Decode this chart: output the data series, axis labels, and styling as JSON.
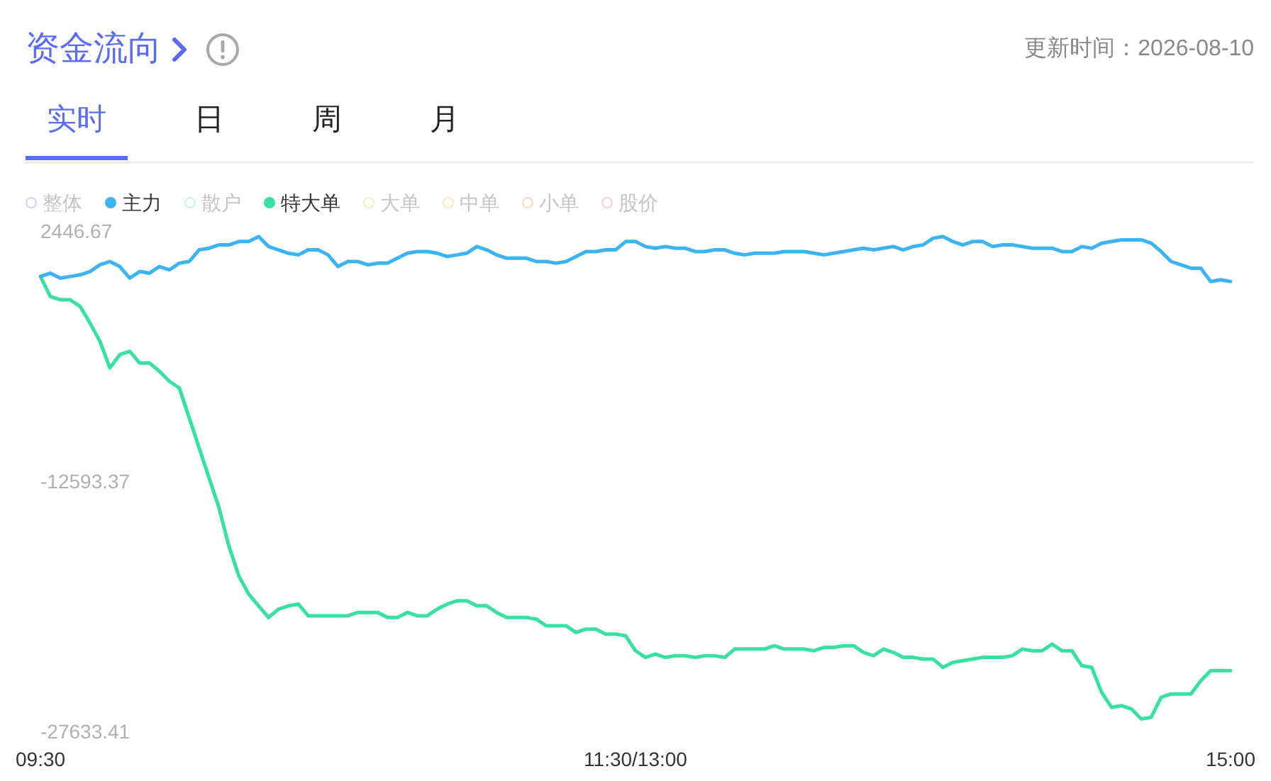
{
  "chart_data": {
    "type": "line",
    "title": "资金流向",
    "subtitle": "更新时间：2026-08-10",
    "annotations": [
      "实时",
      "日",
      "周",
      "月"
    ],
    "categories": [
      "09:30",
      null,
      null,
      null,
      null,
      null,
      null,
      null,
      null,
      null,
      null,
      null,
      null,
      null,
      null,
      null,
      null,
      null,
      null,
      null,
      null,
      null,
      null,
      null,
      null,
      null,
      null,
      null,
      null,
      null,
      null,
      null,
      null,
      null,
      null,
      null,
      null,
      null,
      null,
      null,
      null,
      null,
      null,
      null,
      null,
      null,
      null,
      null,
      null,
      null,
      null,
      null,
      null,
      null,
      null,
      null,
      null,
      null,
      null,
      null,
      "11:30/13:00",
      null,
      null,
      null,
      null,
      null,
      null,
      null,
      null,
      null,
      null,
      null,
      null,
      null,
      null,
      null,
      null,
      null,
      null,
      null,
      null,
      null,
      null,
      null,
      null,
      null,
      null,
      null,
      null,
      null,
      null,
      null,
      null,
      null,
      null,
      null,
      null,
      null,
      null,
      null,
      null,
      null,
      null,
      null,
      null,
      null,
      null,
      null,
      null,
      null,
      null,
      null,
      null,
      null,
      null,
      null,
      null,
      null,
      null,
      null,
      "15:00"
    ],
    "ylim": [
      -27633.41,
      2446.67
    ],
    "yticks": [
      -27633.41,
      -12593.37,
      2446.67
    ],
    "legend": "top left",
    "marker": "none",
    "line_style": "solid",
    "series": [
      {
        "name": "整体",
        "color": "#cfd3f7",
        "values": [
          null,
          null,
          null,
          null,
          null,
          null,
          null,
          null,
          null,
          null,
          null,
          null,
          null,
          null,
          null,
          null,
          null,
          null,
          null,
          null,
          null,
          null,
          null,
          null,
          null,
          null,
          null,
          null,
          null,
          null,
          null,
          null,
          null,
          null,
          null,
          null,
          null,
          null,
          null,
          null,
          null,
          null,
          null,
          null,
          null,
          null,
          null,
          null,
          null,
          null,
          null,
          null,
          null,
          null,
          null,
          null,
          null,
          null,
          null,
          null,
          null,
          null,
          null,
          null,
          null,
          null,
          null,
          null,
          null,
          null,
          null,
          null,
          null,
          null,
          null,
          null,
          null,
          null,
          null,
          null,
          null,
          null,
          null,
          null,
          null,
          null,
          null,
          null,
          null,
          null,
          null,
          null,
          null,
          null,
          null,
          null,
          null,
          null,
          null,
          null,
          null,
          null,
          null,
          null,
          null,
          null,
          null,
          null,
          null,
          null,
          null,
          null,
          null,
          null,
          null,
          null,
          null,
          null,
          null,
          null,
          null
        ]
      },
      {
        "name": "主力",
        "color": "#3db3f1",
        "values": [
          -200,
          0,
          -300,
          -200,
          -100,
          100,
          500,
          700,
          400,
          -300,
          100,
          0,
          400,
          200,
          600,
          700,
          1400,
          1500,
          1700,
          1700,
          1900,
          1900,
          2200,
          1600,
          1400,
          1200,
          1100,
          1400,
          1400,
          1100,
          400,
          700,
          700,
          500,
          600,
          600,
          900,
          1200,
          1300,
          1300,
          1200,
          1000,
          1100,
          1200,
          1600,
          1400,
          1100,
          900,
          900,
          900,
          700,
          700,
          600,
          700,
          1000,
          1300,
          1300,
          1400,
          1400,
          1900,
          1900,
          1600,
          1500,
          1600,
          1500,
          1500,
          1300,
          1300,
          1400,
          1400,
          1200,
          1100,
          1200,
          1200,
          1200,
          1300,
          1300,
          1300,
          1200,
          1100,
          1200,
          1300,
          1400,
          1500,
          1400,
          1500,
          1600,
          1400,
          1600,
          1700,
          2100,
          2200,
          1900,
          1700,
          1900,
          1900,
          1600,
          1700,
          1700,
          1600,
          1500,
          1500,
          1500,
          1300,
          1300,
          1600,
          1500,
          1800,
          1900,
          2000,
          2000,
          2000,
          1800,
          1300,
          700,
          500,
          300,
          300,
          -500,
          -400,
          -500
        ]
      },
      {
        "name": "散户",
        "color": "#c9f1ee",
        "values": [
          null,
          null,
          null,
          null,
          null,
          null,
          null,
          null,
          null,
          null,
          null,
          null,
          null,
          null,
          null,
          null,
          null,
          null,
          null,
          null,
          null,
          null,
          null,
          null,
          null,
          null,
          null,
          null,
          null,
          null,
          null,
          null,
          null,
          null,
          null,
          null,
          null,
          null,
          null,
          null,
          null,
          null,
          null,
          null,
          null,
          null,
          null,
          null,
          null,
          null,
          null,
          null,
          null,
          null,
          null,
          null,
          null,
          null,
          null,
          null,
          null,
          null,
          null,
          null,
          null,
          null,
          null,
          null,
          null,
          null,
          null,
          null,
          null,
          null,
          null,
          null,
          null,
          null,
          null,
          null,
          null,
          null,
          null,
          null,
          null,
          null,
          null,
          null,
          null,
          null,
          null,
          null,
          null,
          null,
          null,
          null,
          null,
          null,
          null,
          null,
          null,
          null,
          null,
          null,
          null,
          null,
          null,
          null,
          null,
          null,
          null,
          null,
          null,
          null,
          null,
          null,
          null,
          null,
          null,
          null,
          null
        ]
      },
      {
        "name": "特大单",
        "color": "#38e0a1",
        "values": [
          -200,
          -1400,
          -1600,
          -1600,
          -2000,
          -3000,
          -4100,
          -5700,
          -4900,
          -4700,
          -5400,
          -5400,
          -5900,
          -6500,
          -6900,
          -8700,
          -10500,
          -12300,
          -14100,
          -16400,
          -18200,
          -19300,
          -20000,
          -20700,
          -20200,
          -20000,
          -19900,
          -20600,
          -20600,
          -20600,
          -20600,
          -20600,
          -20400,
          -20400,
          -20400,
          -20700,
          -20700,
          -20400,
          -20600,
          -20600,
          -20200,
          -19900,
          -19700,
          -19700,
          -20000,
          -20000,
          -20400,
          -20700,
          -20700,
          -20700,
          -20800,
          -21200,
          -21200,
          -21200,
          -21600,
          -21400,
          -21400,
          -21700,
          -21700,
          -21800,
          -22700,
          -23100,
          -22900,
          -23100,
          -23000,
          -23000,
          -23100,
          -23000,
          -23000,
          -23100,
          -22600,
          -22600,
          -22600,
          -22600,
          -22400,
          -22600,
          -22600,
          -22600,
          -22700,
          -22500,
          -22500,
          -22400,
          -22400,
          -22800,
          -23000,
          -22600,
          -22800,
          -23100,
          -23100,
          -23200,
          -23200,
          -23700,
          -23400,
          -23300,
          -23200,
          -23100,
          -23100,
          -23100,
          -23000,
          -22600,
          -22700,
          -22700,
          -22300,
          -22700,
          -22700,
          -23600,
          -23700,
          -25200,
          -26100,
          -26000,
          -26200,
          -26800,
          -26700,
          -25500,
          -25300,
          -25300,
          -25300,
          -24500,
          -23900,
          -23900,
          -23900
        ]
      },
      {
        "name": "大单",
        "color": "#e5f3c6",
        "values": [
          null,
          null,
          null,
          null,
          null,
          null,
          null,
          null,
          null,
          null,
          null,
          null,
          null,
          null,
          null,
          null,
          null,
          null,
          null,
          null,
          null,
          null,
          null,
          null,
          null,
          null,
          null,
          null,
          null,
          null,
          null,
          null,
          null,
          null,
          null,
          null,
          null,
          null,
          null,
          null,
          null,
          null,
          null,
          null,
          null,
          null,
          null,
          null,
          null,
          null,
          null,
          null,
          null,
          null,
          null,
          null,
          null,
          null,
          null,
          null,
          null,
          null,
          null,
          null,
          null,
          null,
          null,
          null,
          null,
          null,
          null,
          null,
          null,
          null,
          null,
          null,
          null,
          null,
          null,
          null,
          null,
          null,
          null,
          null,
          null,
          null,
          null,
          null,
          null,
          null,
          null,
          null,
          null,
          null,
          null,
          null,
          null,
          null,
          null,
          null,
          null,
          null,
          null,
          null,
          null,
          null,
          null,
          null,
          null,
          null,
          null,
          null,
          null,
          null,
          null,
          null,
          null,
          null,
          null,
          null,
          null
        ]
      },
      {
        "name": "中单",
        "color": "#fbe9c0",
        "values": [
          null,
          null,
          null,
          null,
          null,
          null,
          null,
          null,
          null,
          null,
          null,
          null,
          null,
          null,
          null,
          null,
          null,
          null,
          null,
          null,
          null,
          null,
          null,
          null,
          null,
          null,
          null,
          null,
          null,
          null,
          null,
          null,
          null,
          null,
          null,
          null,
          null,
          null,
          null,
          null,
          null,
          null,
          null,
          null,
          null,
          null,
          null,
          null,
          null,
          null,
          null,
          null,
          null,
          null,
          null,
          null,
          null,
          null,
          null,
          null,
          null,
          null,
          null,
          null,
          null,
          null,
          null,
          null,
          null,
          null,
          null,
          null,
          null,
          null,
          null,
          null,
          null,
          null,
          null,
          null,
          null,
          null,
          null,
          null,
          null,
          null,
          null,
          null,
          null,
          null,
          null,
          null,
          null,
          null,
          null,
          null,
          null,
          null,
          null,
          null,
          null,
          null,
          null,
          null,
          null,
          null,
          null,
          null,
          null,
          null,
          null,
          null,
          null,
          null,
          null,
          null,
          null,
          null,
          null,
          null,
          null
        ]
      },
      {
        "name": "小单",
        "color": "#fbd8c4",
        "values": [
          null,
          null,
          null,
          null,
          null,
          null,
          null,
          null,
          null,
          null,
          null,
          null,
          null,
          null,
          null,
          null,
          null,
          null,
          null,
          null,
          null,
          null,
          null,
          null,
          null,
          null,
          null,
          null,
          null,
          null,
          null,
          null,
          null,
          null,
          null,
          null,
          null,
          null,
          null,
          null,
          null,
          null,
          null,
          null,
          null,
          null,
          null,
          null,
          null,
          null,
          null,
          null,
          null,
          null,
          null,
          null,
          null,
          null,
          null,
          null,
          null,
          null,
          null,
          null,
          null,
          null,
          null,
          null,
          null,
          null,
          null,
          null,
          null,
          null,
          null,
          null,
          null,
          null,
          null,
          null,
          null,
          null,
          null,
          null,
          null,
          null,
          null,
          null,
          null,
          null,
          null,
          null,
          null,
          null,
          null,
          null,
          null,
          null,
          null,
          null,
          null,
          null,
          null,
          null,
          null,
          null,
          null,
          null,
          null,
          null,
          null,
          null,
          null,
          null,
          null,
          null,
          null,
          null,
          null,
          null,
          null
        ]
      },
      {
        "name": "股价",
        "color": "#f9d3cf",
        "values": [
          null,
          null,
          null,
          null,
          null,
          null,
          null,
          null,
          null,
          null,
          null,
          null,
          null,
          null,
          null,
          null,
          null,
          null,
          null,
          null,
          null,
          null,
          null,
          null,
          null,
          null,
          null,
          null,
          null,
          null,
          null,
          null,
          null,
          null,
          null,
          null,
          null,
          null,
          null,
          null,
          null,
          null,
          null,
          null,
          null,
          null,
          null,
          null,
          null,
          null,
          null,
          null,
          null,
          null,
          null,
          null,
          null,
          null,
          null,
          null,
          null,
          null,
          null,
          null,
          null,
          null,
          null,
          null,
          null,
          null,
          null,
          null,
          null,
          null,
          null,
          null,
          null,
          null,
          null,
          null,
          null,
          null,
          null,
          null,
          null,
          null,
          null,
          null,
          null,
          null,
          null,
          null,
          null,
          null,
          null,
          null,
          null,
          null,
          null,
          null,
          null,
          null,
          null,
          null,
          null,
          null,
          null,
          null,
          null,
          null,
          null,
          null,
          null,
          null,
          null,
          null,
          null,
          null,
          null,
          null,
          null
        ]
      }
    ]
  }
}
